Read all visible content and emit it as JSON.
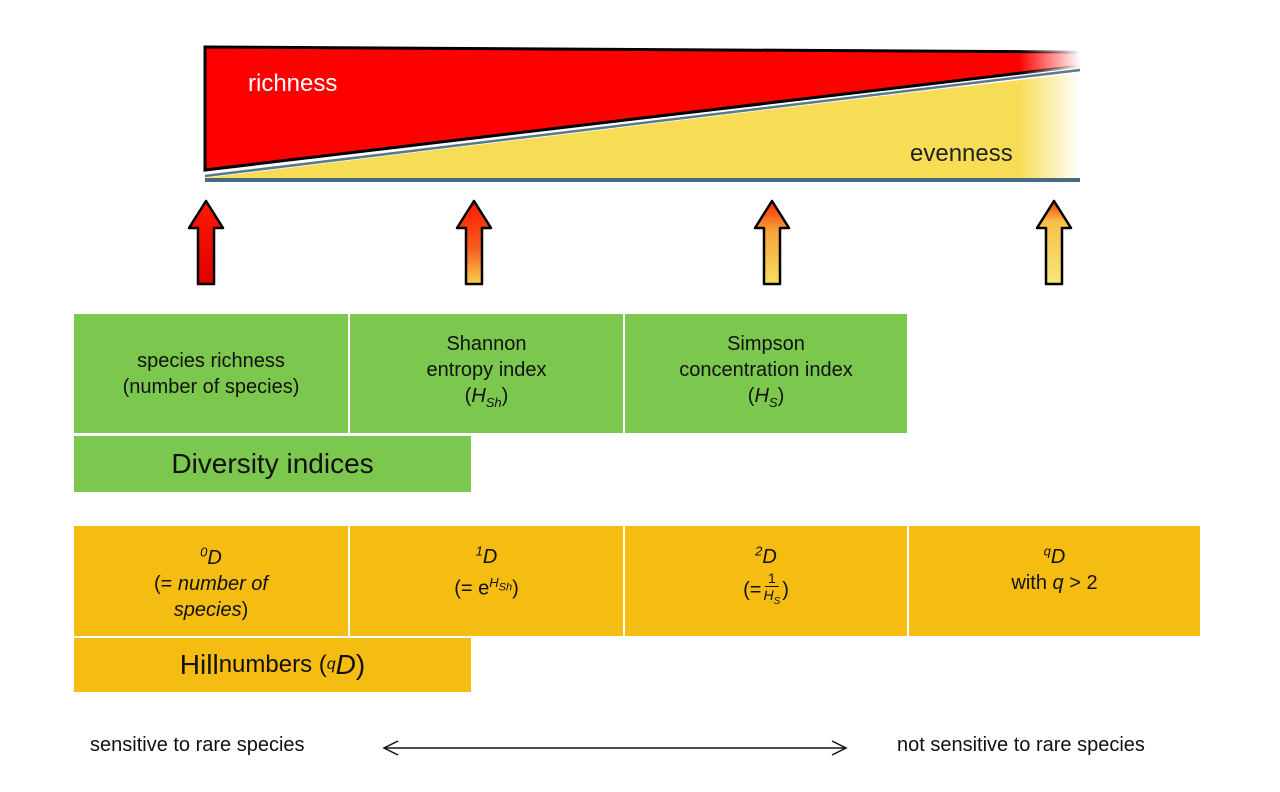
{
  "wedge": {
    "top_label": "richness",
    "bottom_label": "evenness",
    "colors": {
      "richness": "#ff0000",
      "evenness": "#f6dd55"
    }
  },
  "arrows": [
    {
      "id": "q0",
      "gradient_top": "#ff0000",
      "gradient_bottom": "#e00000"
    },
    {
      "id": "q1",
      "gradient_top": "#ff1a00",
      "gradient_bottom": "#f7d04a"
    },
    {
      "id": "q2",
      "gradient_top": "#ff2a00",
      "gradient_bottom": "#f7e060"
    },
    {
      "id": "qn",
      "gradient_top": "#ff3a00",
      "gradient_bottom": "#f7e77a"
    }
  ],
  "diversity": {
    "cells": [
      {
        "line1": "species richness",
        "line2": "(number of species)"
      },
      {
        "line1": "Shannon",
        "line2": "entropy index",
        "sym": "H",
        "sub": "Sh"
      },
      {
        "line1": "Simpson",
        "line2": "concentration index",
        "sym": "H",
        "sub": "S"
      }
    ],
    "title": "Diversity indices"
  },
  "hill": {
    "cells": [
      {
        "sup": "0",
        "sym": "D",
        "line2": "(= ",
        "italic": "number of",
        "line3": "species",
        "close": ")"
      },
      {
        "sup": "1",
        "sym": "D",
        "formula": "(= e",
        "exp": "H",
        "exp_sub": "Sh",
        "close": ")"
      },
      {
        "sup": "2",
        "sym": "D",
        "formula": "(=",
        "num": "1",
        "den": "H",
        "den_sub": "S",
        "close": ")"
      },
      {
        "sup": "q",
        "sym": "D",
        "line2_pre": "with ",
        "line2_var": "q",
        "line2_post": " > 2"
      }
    ],
    "title_pre": "Hill",
    "title_mid": " numbers (",
    "title_sup": "q",
    "title_sym": "D",
    "title_close": ")"
  },
  "bottom": {
    "left": "sensitive to rare species",
    "right": "not sensitive to rare species"
  }
}
